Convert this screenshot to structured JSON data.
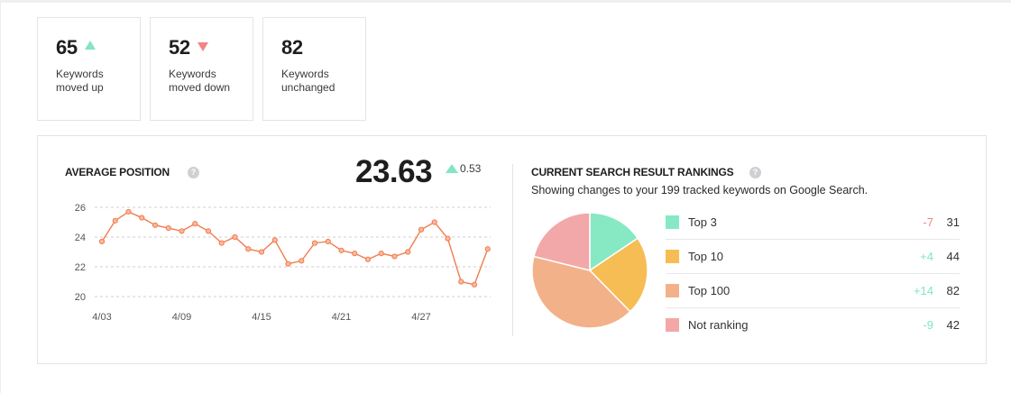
{
  "stats": [
    {
      "value": "65",
      "label_line1": "Keywords",
      "label_line2": "moved up",
      "trend": "up"
    },
    {
      "value": "52",
      "label_line1": "Keywords",
      "label_line2": "moved down",
      "trend": "down"
    },
    {
      "value": "82",
      "label_line1": "Keywords",
      "label_line2": "unchanged",
      "trend": "none"
    }
  ],
  "average_position": {
    "title": "AVERAGE POSITION",
    "help_icon": "?",
    "value": "23.63",
    "delta": "0.53",
    "delta_direction": "up"
  },
  "rankings": {
    "title": "CURRENT SEARCH RESULT RANKINGS",
    "help_icon": "?",
    "subtitle": "Showing changes to your 199 tracked keywords on Google Search.",
    "items": [
      {
        "label": "Top 3",
        "delta": "-7",
        "count": "31",
        "color": "#86e9c4",
        "delta_color": "#f48383"
      },
      {
        "label": "Top 10",
        "delta": "+4",
        "count": "44",
        "color": "#f6bd55",
        "delta_color": "#82e6c1"
      },
      {
        "label": "Top 100",
        "delta": "+14",
        "count": "82",
        "color": "#f3b18a",
        "delta_color": "#82e6c1"
      },
      {
        "label": "Not ranking",
        "delta": "-9",
        "count": "42",
        "color": "#f2a8a8",
        "delta_color": "#82e6c1"
      }
    ]
  },
  "colors": {
    "line": "#f07c4f",
    "up": "#82e6c1",
    "down": "#f48383",
    "grid": "#cfcfcf",
    "border": "#e3e4e8"
  },
  "chart_data": [
    {
      "type": "line",
      "title": "AVERAGE POSITION",
      "xlabel": "",
      "ylabel": "",
      "x": [
        "4/03",
        "4/04",
        "4/05",
        "4/06",
        "4/07",
        "4/08",
        "4/09",
        "4/10",
        "4/11",
        "4/12",
        "4/13",
        "4/14",
        "4/15",
        "4/16",
        "4/17",
        "4/18",
        "4/19",
        "4/20",
        "4/21",
        "4/22",
        "4/23",
        "4/24",
        "4/25",
        "4/26",
        "4/27",
        "4/28",
        "4/29",
        "4/30",
        "5/01",
        "5/02"
      ],
      "x_tick_labels": [
        "4/03",
        "4/09",
        "4/15",
        "4/21",
        "4/27"
      ],
      "series": [
        {
          "name": "Average position",
          "values": [
            23.7,
            25.1,
            25.7,
            25.3,
            24.8,
            24.6,
            24.4,
            24.9,
            24.4,
            23.6,
            24.0,
            23.2,
            23.0,
            23.8,
            22.2,
            22.4,
            23.6,
            23.7,
            23.1,
            22.9,
            22.5,
            22.9,
            22.7,
            23.0,
            24.5,
            25.0,
            23.9,
            21.0,
            20.8,
            23.2
          ]
        }
      ],
      "y_ticks": [
        20,
        22,
        24,
        26
      ],
      "ylim": [
        19.5,
        26.5
      ],
      "grid": true,
      "legend": "none"
    },
    {
      "type": "pie",
      "title": "CURRENT SEARCH RESULT RANKINGS",
      "categories": [
        "Top 3",
        "Top 10",
        "Top 100",
        "Not ranking"
      ],
      "values": [
        31,
        44,
        82,
        42
      ],
      "changes": [
        -7,
        4,
        14,
        -9
      ],
      "total": 199,
      "legend": "right"
    }
  ]
}
